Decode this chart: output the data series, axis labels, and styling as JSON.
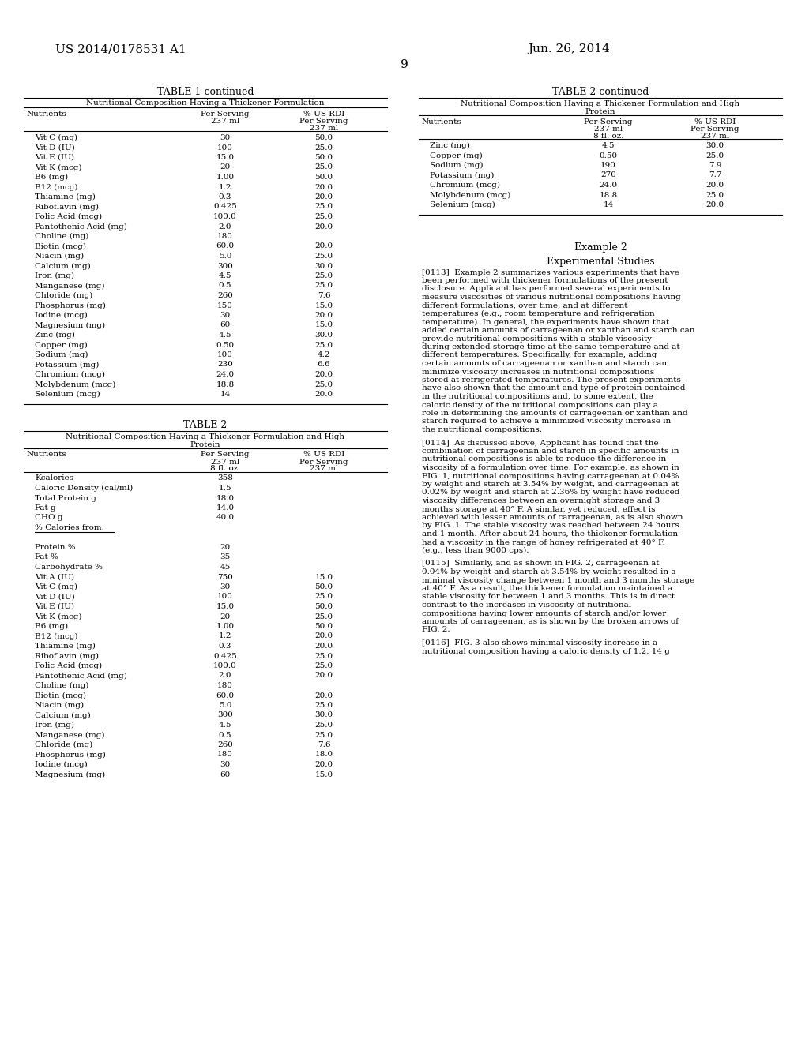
{
  "page_number": "9",
  "patent_number": "US 2014/0178531 A1",
  "patent_date": "Jun. 26, 2014",
  "bg_color": "#ffffff",
  "text_color": "#000000",
  "table1_continued_title": "TABLE 1-continued",
  "table1_subtitle": "Nutritional Composition Having a Thickener Formulation",
  "table1_col_headers": [
    "Nutrients",
    "Per Serving\n237 ml",
    "% US RDI\nPer Serving\n237 ml"
  ],
  "table1_rows": [
    [
      "Vit C (mg)",
      "30",
      "50.0"
    ],
    [
      "Vit D (IU)",
      "100",
      "25.0"
    ],
    [
      "Vit E (IU)",
      "15.0",
      "50.0"
    ],
    [
      "Vit K (mcg)",
      "20",
      "25.0"
    ],
    [
      "B6 (mg)",
      "1.00",
      "50.0"
    ],
    [
      "B12 (mcg)",
      "1.2",
      "20.0"
    ],
    [
      "Thiamine (mg)",
      "0.3",
      "20.0"
    ],
    [
      "Riboflavin (mg)",
      "0.425",
      "25.0"
    ],
    [
      "Folic Acid (mcg)",
      "100.0",
      "25.0"
    ],
    [
      "Pantothenic Acid (mg)",
      "2.0",
      "20.0"
    ],
    [
      "Choline (mg)",
      "180",
      ""
    ],
    [
      "Biotin (mcg)",
      "60.0",
      "20.0"
    ],
    [
      "Niacin (mg)",
      "5.0",
      "25.0"
    ],
    [
      "Calcium (mg)",
      "300",
      "30.0"
    ],
    [
      "Iron (mg)",
      "4.5",
      "25.0"
    ],
    [
      "Manganese (mg)",
      "0.5",
      "25.0"
    ],
    [
      "Chloride (mg)",
      "260",
      "7.6"
    ],
    [
      "Phosphorus (mg)",
      "150",
      "15.0"
    ],
    [
      "Iodine (mcg)",
      "30",
      "20.0"
    ],
    [
      "Magnesium (mg)",
      "60",
      "15.0"
    ],
    [
      "Zinc (mg)",
      "4.5",
      "30.0"
    ],
    [
      "Copper (mg)",
      "0.50",
      "25.0"
    ],
    [
      "Sodium (mg)",
      "100",
      "4.2"
    ],
    [
      "Potassium (mg)",
      "230",
      "6.6"
    ],
    [
      "Chromium (mcg)",
      "24.0",
      "20.0"
    ],
    [
      "Molybdenum (mcg)",
      "18.8",
      "25.0"
    ],
    [
      "Selenium (mcg)",
      "14",
      "20.0"
    ]
  ],
  "table2_title": "TABLE 2",
  "table2_subtitle": "Nutritional Composition Having a Thickener Formulation and High\nProtein",
  "table2_col_headers": [
    "Nutrients",
    "Per Serving\n237 ml\n8 fl. oz.",
    "% US RDI\nPer Serving\n237 ml"
  ],
  "table2_rows": [
    [
      "Kcalories",
      "358",
      ""
    ],
    [
      "Caloric Density (cal/ml)",
      "1.5",
      ""
    ],
    [
      "Total Protein g",
      "18.0",
      ""
    ],
    [
      "Fat g",
      "14.0",
      ""
    ],
    [
      "CHO g",
      "40.0",
      ""
    ],
    [
      "% Calories from:",
      "",
      ""
    ],
    [
      "",
      "",
      ""
    ],
    [
      "Protein %",
      "20",
      ""
    ],
    [
      "Fat %",
      "35",
      ""
    ],
    [
      "Carbohydrate %",
      "45",
      ""
    ],
    [
      "Vit A (IU)",
      "750",
      "15.0"
    ],
    [
      "Vit C (mg)",
      "30",
      "50.0"
    ],
    [
      "Vit D (IU)",
      "100",
      "25.0"
    ],
    [
      "Vit E (IU)",
      "15.0",
      "50.0"
    ],
    [
      "Vit K (mcg)",
      "20",
      "25.0"
    ],
    [
      "B6 (mg)",
      "1.00",
      "50.0"
    ],
    [
      "B12 (mcg)",
      "1.2",
      "20.0"
    ],
    [
      "Thiamine (mg)",
      "0.3",
      "20.0"
    ],
    [
      "Riboflavin (mg)",
      "0.425",
      "25.0"
    ],
    [
      "Folic Acid (mcg)",
      "100.0",
      "25.0"
    ],
    [
      "Pantothenic Acid (mg)",
      "2.0",
      "20.0"
    ],
    [
      "Choline (mg)",
      "180",
      ""
    ],
    [
      "Biotin (mcg)",
      "60.0",
      "20.0"
    ],
    [
      "Niacin (mg)",
      "5.0",
      "25.0"
    ],
    [
      "Calcium (mg)",
      "300",
      "30.0"
    ],
    [
      "Iron (mg)",
      "4.5",
      "25.0"
    ],
    [
      "Manganese (mg)",
      "0.5",
      "25.0"
    ],
    [
      "Chloride (mg)",
      "260",
      "7.6"
    ],
    [
      "Phosphorus (mg)",
      "180",
      "18.0"
    ],
    [
      "Iodine (mcg)",
      "30",
      "20.0"
    ],
    [
      "Magnesium (mg)",
      "60",
      "15.0"
    ]
  ],
  "table2_continued_title": "TABLE 2-continued",
  "table2_continued_subtitle": "Nutritional Composition Having a Thickener Formulation and High\nProtein",
  "table2_cont_col_headers": [
    "Nutrients",
    "Per Serving\n237 ml\n8 fl. oz.",
    "% US RDI\nPer Serving\n237 ml"
  ],
  "table2_cont_rows": [
    [
      "Zinc (mg)",
      "4.5",
      "30.0"
    ],
    [
      "Copper (mg)",
      "0.50",
      "25.0"
    ],
    [
      "Sodium (mg)",
      "190",
      "7.9"
    ],
    [
      "Potassium (mg)",
      "270",
      "7.7"
    ],
    [
      "Chromium (mcg)",
      "24.0",
      "20.0"
    ],
    [
      "Molybdenum (mcg)",
      "18.8",
      "25.0"
    ],
    [
      "Selenium (mcg)",
      "14",
      "20.0"
    ]
  ],
  "example2_heading": "Example 2",
  "example2_subheading": "Experimental Studies",
  "para0113": "[0113]  Example 2 summarizes various experiments that have been performed with thickener formulations of the present disclosure. Applicant has performed several experiments to measure viscosities of various nutritional compositions having different formulations, over time, and at different temperatures (e.g., room temperature and refrigeration temperature). In general, the experiments have shown that added certain amounts of carrageenan or xanthan and starch can provide nutritional compositions with a stable viscosity during extended storage time at the same temperature and at different temperatures. Specifically, for example, adding certain amounts of carrageenan or xanthan and starch can minimize viscosity increases in nutritional compositions stored at refrigerated temperatures. The present experiments have also shown that the amount and type of protein contained in the nutritional compositions and, to some extent, the caloric density of the nutritional compositions can play a role in determining the amounts of carrageenan or xanthan and starch required to achieve a minimized viscosity increase in the nutritional compositions.",
  "para0114": "[0114]  As discussed above, Applicant has found that the combination of carrageenan and starch in specific amounts in nutritional compositions is able to reduce the difference in viscosity of a formulation over time. For example, as shown in FIG. 1, nutritional compositions having carrageenan at 0.04% by weight and starch at 3.54% by weight, and carrageenan at 0.02% by weight and starch at 2.36% by weight have reduced viscosity differences between an overnight storage and 3 months storage at 40° F. A similar, yet reduced, effect is achieved with lesser amounts of carrageenan, as is also shown by FIG. 1. The stable viscosity was reached between 24 hours and 1 month. After about 24 hours, the thickener formulation had a viscosity in the range of honey refrigerated at 40° F. (e.g., less than 9000 cps).",
  "para0115": "[0115]  Similarly, and as shown in FIG. 2, carrageenan at 0.04% by weight and starch at 3.54% by weight resulted in a minimal viscosity change between 1 month and 3 months storage at 40° F. As a result, the thickener formulation maintained a stable viscosity for between 1 and 3 months. This is in direct contrast to the increases in viscosity of nutritional compositions having lower amounts of starch and/or lower amounts of carrageenan, as is shown by the broken arrows of FIG. 2.",
  "para0116_partial": "[0116]  FIG. 3 also shows minimal viscosity increase in a nutritional composition having a caloric density of 1.2, 14 g"
}
